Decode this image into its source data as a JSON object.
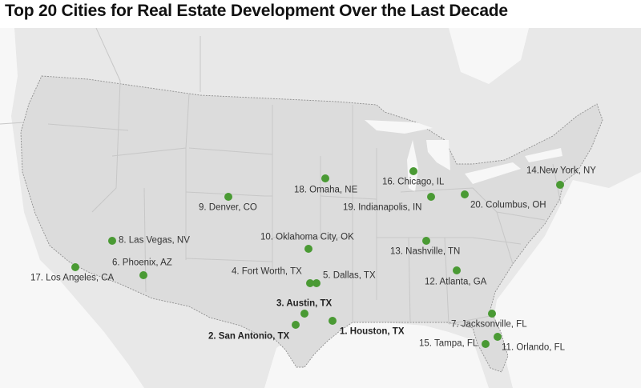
{
  "title": "Top 20 Cities for Real Estate Development Over the Last Decade",
  "colors": {
    "marker": "#4a9a34",
    "land_us": "#dcdcdc",
    "land_other": "#eaeaea",
    "water": "#ffffff"
  },
  "cities": [
    {
      "rank": 1,
      "label": "1. Houston, TX",
      "bold": true
    },
    {
      "rank": 2,
      "label": "2. San Antonio, TX",
      "bold": true
    },
    {
      "rank": 3,
      "label": "3. Austin, TX",
      "bold": true
    },
    {
      "rank": 4,
      "label": "4. Fort Worth, TX",
      "bold": false
    },
    {
      "rank": 5,
      "label": "5. Dallas, TX",
      "bold": false
    },
    {
      "rank": 6,
      "label": "6. Phoenix, AZ",
      "bold": false
    },
    {
      "rank": 7,
      "label": "7. Jacksonville, FL",
      "bold": false
    },
    {
      "rank": 8,
      "label": "8. Las Vegas, NV",
      "bold": false
    },
    {
      "rank": 9,
      "label": "9. Denver, CO",
      "bold": false
    },
    {
      "rank": 10,
      "label": "10. Oklahoma City, OK",
      "bold": false
    },
    {
      "rank": 11,
      "label": "11. Orlando, FL",
      "bold": false
    },
    {
      "rank": 12,
      "label": "12. Atlanta, GA",
      "bold": false
    },
    {
      "rank": 13,
      "label": "13. Nashville, TN",
      "bold": false
    },
    {
      "rank": 14,
      "label": "14.New York, NY",
      "bold": false
    },
    {
      "rank": 15,
      "label": "15. Tampa, FL",
      "bold": false
    },
    {
      "rank": 16,
      "label": "16. Chicago, IL",
      "bold": false
    },
    {
      "rank": 17,
      "label": "17. Los Angeles, CA",
      "bold": false
    },
    {
      "rank": 18,
      "label": "18. Omaha, NE",
      "bold": false
    },
    {
      "rank": 19,
      "label": "19. Indianapolis, IN",
      "bold": false
    },
    {
      "rank": 20,
      "label": "20. Columbus, OH",
      "bold": false
    }
  ]
}
